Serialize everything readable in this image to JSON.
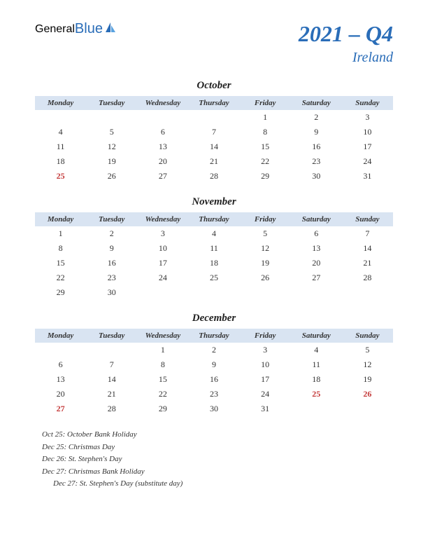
{
  "logo": {
    "part1": "General",
    "part2": "Blue"
  },
  "title": {
    "year_quarter": "2021 – Q4",
    "country": "Ireland"
  },
  "colors": {
    "header_bg": "#d9e4f2",
    "accent": "#2a6db8",
    "holiday_text": "#c43a3a",
    "text": "#333333",
    "background": "#ffffff"
  },
  "day_headers": [
    "Monday",
    "Tuesday",
    "Wednesday",
    "Thursday",
    "Friday",
    "Saturday",
    "Sunday"
  ],
  "months": [
    {
      "name": "October",
      "weeks": [
        [
          "",
          "",
          "",
          "",
          "1",
          "2",
          "3"
        ],
        [
          "4",
          "5",
          "6",
          "7",
          "8",
          "9",
          "10"
        ],
        [
          "11",
          "12",
          "13",
          "14",
          "15",
          "16",
          "17"
        ],
        [
          "18",
          "19",
          "20",
          "21",
          "22",
          "23",
          "24"
        ],
        [
          "25",
          "26",
          "27",
          "28",
          "29",
          "30",
          "31"
        ]
      ],
      "holidays": [
        "25"
      ]
    },
    {
      "name": "November",
      "weeks": [
        [
          "1",
          "2",
          "3",
          "4",
          "5",
          "6",
          "7"
        ],
        [
          "8",
          "9",
          "10",
          "11",
          "12",
          "13",
          "14"
        ],
        [
          "15",
          "16",
          "17",
          "18",
          "19",
          "20",
          "21"
        ],
        [
          "22",
          "23",
          "24",
          "25",
          "26",
          "27",
          "28"
        ],
        [
          "29",
          "30",
          "",
          "",
          "",
          "",
          ""
        ]
      ],
      "holidays": []
    },
    {
      "name": "December",
      "weeks": [
        [
          "",
          "",
          "1",
          "2",
          "3",
          "4",
          "5"
        ],
        [
          "6",
          "7",
          "8",
          "9",
          "10",
          "11",
          "12"
        ],
        [
          "13",
          "14",
          "15",
          "16",
          "17",
          "18",
          "19"
        ],
        [
          "20",
          "21",
          "22",
          "23",
          "24",
          "25",
          "26"
        ],
        [
          "27",
          "28",
          "29",
          "30",
          "31",
          "",
          ""
        ]
      ],
      "holidays": [
        "25",
        "26",
        "27"
      ]
    }
  ],
  "holiday_list": [
    {
      "text": "Oct 25: October Bank Holiday",
      "sub": false
    },
    {
      "text": "Dec 25: Christmas Day",
      "sub": false
    },
    {
      "text": "Dec 26: St. Stephen's Day",
      "sub": false
    },
    {
      "text": "Dec 27: Christmas Bank Holiday",
      "sub": false
    },
    {
      "text": "Dec 27: St. Stephen's Day (substitute day)",
      "sub": true
    }
  ]
}
